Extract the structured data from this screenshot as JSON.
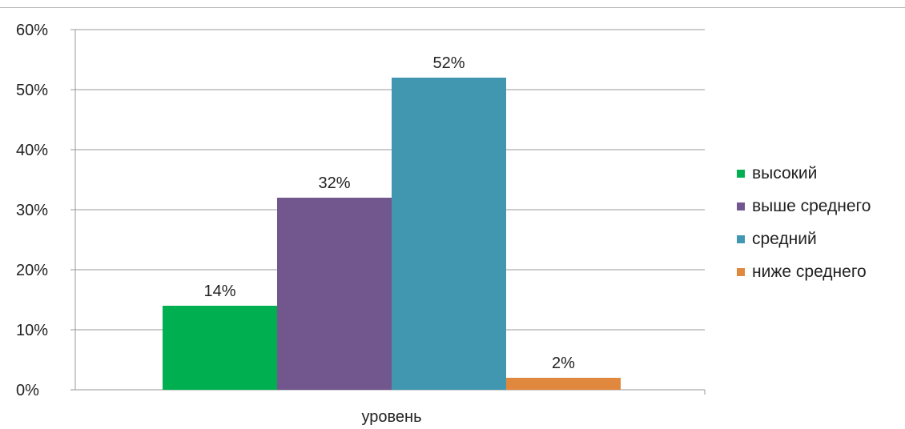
{
  "chart_data": {
    "type": "bar",
    "categories": [
      "уровень"
    ],
    "series": [
      {
        "name": "высокий",
        "values": [
          14
        ],
        "color": "#00b050"
      },
      {
        "name": "выше среднего",
        "values": [
          32
        ],
        "color": "#72568e"
      },
      {
        "name": "средний",
        "values": [
          52
        ],
        "color": "#4197b0"
      },
      {
        "name": "ниже среднего",
        "values": [
          2
        ],
        "color": "#e0883e"
      }
    ],
    "data_labels": [
      "14%",
      "32%",
      "52%",
      "2%"
    ],
    "y_ticks": [
      "0%",
      "10%",
      "20%",
      "30%",
      "40%",
      "50%",
      "60%"
    ],
    "ylim": [
      0,
      60
    ],
    "grid": true,
    "legend_position": "right",
    "xlabel": "",
    "ylabel": "",
    "title": ""
  }
}
